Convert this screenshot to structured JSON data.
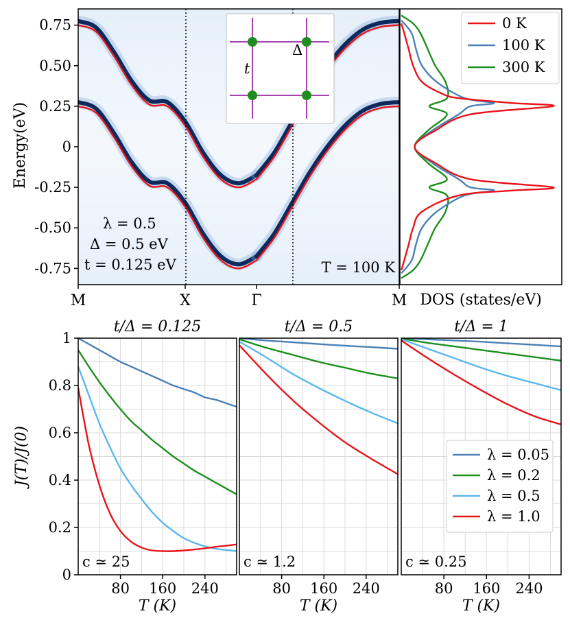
{
  "colors": {
    "red": "#e8141a",
    "steel_blue": "#4a80b6",
    "green": "#1d8f1d",
    "light_blue": "#5ab8ec",
    "band_dark": "#0d2a5c",
    "lattice_edge": "#9b2aa5",
    "lattice_node": "#1e8c1e"
  },
  "chart_data": [
    {
      "type": "line",
      "panel": "band-structure",
      "ylabel": "Energy(eV)",
      "x_ticks": [
        "M",
        "X",
        "Γ",
        "M"
      ],
      "y_ticks": [
        "0.75",
        "0.50",
        "0.25",
        "0",
        "-0.25",
        "-0.50",
        "-0.75"
      ],
      "y_tick_values": [
        0.75,
        0.5,
        0.25,
        0,
        -0.25,
        -0.5,
        -0.75
      ],
      "ylim": [
        -0.85,
        0.85
      ],
      "path_segments": [
        "M-X",
        "X-Γ",
        "Γ-M"
      ],
      "series": [
        {
          "color": "red",
          "description_of_band": "upper",
          "x": [
            0,
            0.5,
            1,
            1.5,
            2,
            2.5,
            3,
            3.5,
            4,
            4.5,
            5
          ],
          "values": [
            0.75,
            0.71,
            0.56,
            0.38,
            0.26,
            0.25,
            0.13,
            -0.06,
            -0.2,
            -0.25,
            -0.2
          ]
        },
        {
          "color": "red",
          "description_of_band": "upper-return",
          "x": [
            5,
            5.5,
            6,
            6.5,
            7,
            7.5,
            8,
            8.5,
            9
          ],
          "values": [
            -0.2,
            -0.06,
            0.13,
            0.32,
            0.48,
            0.61,
            0.7,
            0.74,
            0.75
          ]
        },
        {
          "color": "red",
          "description_of_band": "lower",
          "x": [
            0,
            0.5,
            1,
            1.5,
            2,
            2.5,
            3,
            3.5,
            4,
            4.5,
            5
          ],
          "values": [
            0.25,
            0.21,
            0.06,
            -0.12,
            -0.24,
            -0.25,
            -0.37,
            -0.56,
            -0.7,
            -0.75,
            -0.7
          ]
        },
        {
          "color": "red",
          "description_of_band": "lower-return",
          "x": [
            5,
            5.5,
            6,
            6.5,
            7,
            7.5,
            8,
            8.5,
            9
          ],
          "values": [
            -0.7,
            -0.56,
            -0.37,
            -0.18,
            -0.02,
            0.11,
            0.2,
            0.24,
            0.25
          ]
        }
      ],
      "annotations": [
        "λ = 0.5",
        "Δ = 0.5 eV",
        "t = 0.125 eV",
        "T = 100 K"
      ],
      "inset_labels": [
        "t",
        "Δ"
      ]
    },
    {
      "type": "line",
      "panel": "dos",
      "xlabel": "DOS (states/eV)",
      "legend": {
        "position": "top-right",
        "entries": [
          {
            "name": "0 K",
            "color": "red"
          },
          {
            "name": "100 K",
            "color": "steel_blue"
          },
          {
            "name": "300 K",
            "color": "green"
          }
        ]
      },
      "series": [
        {
          "name": "0 K",
          "energy": [
            0.76,
            0.7,
            0.6,
            0.5,
            0.4,
            0.33,
            0.3,
            0.27,
            0.25,
            0.2,
            0.1,
            0.0,
            -0.1,
            -0.2,
            -0.25,
            -0.27,
            -0.3,
            -0.4,
            -0.5,
            -0.6,
            -0.7,
            -0.76
          ],
          "dos": [
            0.05,
            0.15,
            0.3,
            0.45,
            0.75,
            1.4,
            2.0,
            3.8,
            5.2,
            2.4,
            1.2,
            0.5,
            1.2,
            2.4,
            5.2,
            3.8,
            2.0,
            0.75,
            0.45,
            0.3,
            0.15,
            0.05
          ]
        },
        {
          "name": "100 K",
          "energy": [
            0.78,
            0.7,
            0.6,
            0.5,
            0.4,
            0.3,
            0.27,
            0.25,
            0.2,
            0.1,
            0.0,
            -0.1,
            -0.2,
            -0.25,
            -0.27,
            -0.3,
            -0.4,
            -0.5,
            -0.6,
            -0.7,
            -0.78
          ],
          "dos": [
            0.05,
            0.4,
            0.55,
            0.75,
            1.25,
            2.2,
            3.2,
            2.4,
            2.0,
            1.1,
            0.5,
            1.1,
            2.0,
            2.4,
            3.2,
            2.2,
            1.25,
            0.75,
            0.55,
            0.4,
            0.05
          ]
        },
        {
          "name": "300 K",
          "energy": [
            0.81,
            0.76,
            0.7,
            0.6,
            0.5,
            0.4,
            0.3,
            0.25,
            0.2,
            0.1,
            0.0,
            -0.1,
            -0.2,
            -0.25,
            -0.3,
            -0.4,
            -0.5,
            -0.6,
            -0.7,
            -0.76,
            -0.81
          ],
          "dos": [
            0.05,
            0.45,
            0.7,
            0.95,
            1.2,
            1.55,
            1.6,
            1.0,
            1.6,
            0.95,
            0.5,
            0.95,
            1.6,
            1.0,
            1.6,
            1.55,
            1.2,
            0.95,
            0.7,
            0.45,
            0.05
          ]
        }
      ]
    },
    {
      "type": "line",
      "panel": "J-ratio",
      "ylabel": "J(T)/J(0)",
      "y_ticks": [
        "0",
        "0.2",
        "0.4",
        "0.6",
        "0.8",
        "1"
      ],
      "y_tick_values": [
        0,
        0.2,
        0.4,
        0.6,
        0.8,
        1
      ],
      "ylim": [
        0,
        1
      ],
      "xlim": [
        0,
        300
      ],
      "x_ticks": [
        "80",
        "160",
        "240"
      ],
      "x_tick_values": [
        80,
        160,
        240
      ],
      "legend": {
        "position": "bottom-right",
        "entries": [
          {
            "name": "λ = 0.05",
            "color": "steel_blue"
          },
          {
            "name": "λ = 0.2",
            "color": "green"
          },
          {
            "name": "λ = 0.5",
            "color": "light_blue"
          },
          {
            "name": "λ = 1.0",
            "color": "red"
          }
        ]
      },
      "subplots": [
        {
          "title": "t/Δ = 0.125",
          "xlabel": "T (K)",
          "annotation": "c ≃ 25",
          "series": [
            {
              "name": "λ = 0.05",
              "x": [
                0,
                20,
                40,
                60,
                80,
                100,
                120,
                140,
                160,
                180,
                200,
                220,
                240,
                260,
                280,
                300
              ],
              "values": [
                1.0,
                0.975,
                0.95,
                0.925,
                0.9,
                0.88,
                0.86,
                0.84,
                0.82,
                0.8,
                0.785,
                0.77,
                0.75,
                0.74,
                0.725,
                0.71
              ]
            },
            {
              "name": "λ = 0.2",
              "x": [
                0,
                20,
                40,
                60,
                80,
                100,
                120,
                140,
                160,
                180,
                200,
                220,
                240,
                260,
                280,
                300
              ],
              "values": [
                0.95,
                0.88,
                0.815,
                0.755,
                0.7,
                0.65,
                0.61,
                0.57,
                0.535,
                0.5,
                0.47,
                0.44,
                0.415,
                0.39,
                0.365,
                0.34
              ]
            },
            {
              "name": "λ = 0.5",
              "x": [
                0,
                20,
                40,
                60,
                80,
                100,
                120,
                140,
                160,
                180,
                200,
                220,
                240,
                260,
                280,
                300
              ],
              "values": [
                0.88,
                0.76,
                0.64,
                0.54,
                0.45,
                0.38,
                0.32,
                0.265,
                0.22,
                0.185,
                0.155,
                0.135,
                0.12,
                0.11,
                0.105,
                0.1
              ]
            },
            {
              "name": "λ = 1.0",
              "x": [
                0,
                20,
                40,
                60,
                80,
                100,
                120,
                140,
                160,
                180,
                200,
                220,
                240,
                260,
                280,
                300
              ],
              "values": [
                0.79,
                0.55,
                0.38,
                0.26,
                0.185,
                0.14,
                0.115,
                0.103,
                0.1,
                0.1,
                0.103,
                0.107,
                0.112,
                0.118,
                0.123,
                0.128
              ]
            }
          ]
        },
        {
          "title": "t/Δ = 0.5",
          "xlabel": "T (K)",
          "annotation": "c ≃ 1.2",
          "series": [
            {
              "name": "λ = 0.05",
              "x": [
                0,
                50,
                100,
                150,
                200,
                250,
                300
              ],
              "values": [
                1.0,
                0.99,
                0.983,
                0.975,
                0.968,
                0.962,
                0.955
              ]
            },
            {
              "name": "λ = 0.2",
              "x": [
                0,
                50,
                100,
                150,
                200,
                250,
                300
              ],
              "values": [
                0.995,
                0.96,
                0.93,
                0.9,
                0.875,
                0.85,
                0.83
              ]
            },
            {
              "name": "λ = 0.5",
              "x": [
                0,
                50,
                100,
                150,
                200,
                250,
                300
              ],
              "values": [
                0.985,
                0.92,
                0.85,
                0.79,
                0.735,
                0.685,
                0.64
              ]
            },
            {
              "name": "λ = 1.0",
              "x": [
                0,
                50,
                100,
                150,
                200,
                250,
                300
              ],
              "values": [
                0.97,
                0.85,
                0.74,
                0.645,
                0.56,
                0.49,
                0.425
              ]
            }
          ]
        },
        {
          "title": "t/Δ = 1",
          "xlabel": "T (K)",
          "annotation": "c ≃ 0.25",
          "series": [
            {
              "name": "λ = 0.05",
              "x": [
                0,
                50,
                100,
                150,
                200,
                250,
                300
              ],
              "values": [
                1.0,
                0.995,
                0.99,
                0.985,
                0.978,
                0.972,
                0.965
              ]
            },
            {
              "name": "λ = 0.2",
              "x": [
                0,
                50,
                100,
                150,
                200,
                250,
                300
              ],
              "values": [
                0.998,
                0.98,
                0.965,
                0.95,
                0.935,
                0.92,
                0.905
              ]
            },
            {
              "name": "λ = 0.5",
              "x": [
                0,
                50,
                100,
                150,
                200,
                250,
                300
              ],
              "values": [
                0.995,
                0.955,
                0.915,
                0.875,
                0.84,
                0.81,
                0.78
              ]
            },
            {
              "name": "λ = 1.0",
              "x": [
                0,
                50,
                100,
                150,
                200,
                250,
                300
              ],
              "values": [
                0.99,
                0.915,
                0.845,
                0.78,
                0.72,
                0.67,
                0.635
              ]
            }
          ]
        }
      ]
    }
  ]
}
